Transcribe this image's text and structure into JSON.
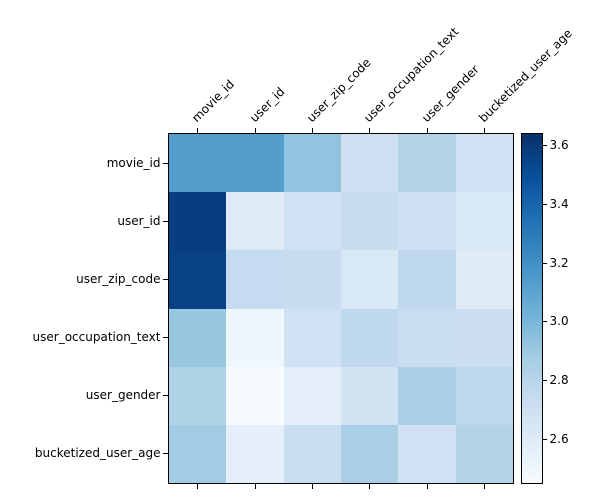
{
  "figure": {
    "background_color": "#ffffff",
    "axes_border_color": "#000000",
    "tick_color": "#000000",
    "text_color": "#000000"
  },
  "chart_data": {
    "type": "heatmap",
    "title": "",
    "xlabel": "",
    "ylabel": "",
    "columns": [
      "movie_id",
      "user_id",
      "user_zip_code",
      "user_occupation_text",
      "user_gender",
      "bucketized_user_age"
    ],
    "rows": [
      "movie_id",
      "user_id",
      "user_zip_code",
      "user_occupation_text",
      "user_gender",
      "bucketized_user_age"
    ],
    "values": [
      [
        3.13,
        3.13,
        2.93,
        2.7,
        2.82,
        2.69
      ],
      [
        3.58,
        2.6,
        2.69,
        2.74,
        2.7,
        2.63
      ],
      [
        3.56,
        2.75,
        2.74,
        2.63,
        2.77,
        2.59
      ],
      [
        2.91,
        2.5,
        2.69,
        2.77,
        2.73,
        2.71
      ],
      [
        2.83,
        2.45,
        2.57,
        2.68,
        2.84,
        2.78
      ],
      [
        2.88,
        2.56,
        2.73,
        2.85,
        2.69,
        2.82
      ]
    ],
    "colormap": "Blues",
    "vmin": 2.45,
    "vmax": 3.64,
    "x_tick_rotation_deg": 45,
    "x_ticks_position": "top",
    "grid": false,
    "colorbar": {
      "position": "right",
      "ticks": [
        3.6,
        3.4,
        3.2,
        3.0,
        2.8,
        2.6
      ],
      "tick_labels": [
        "3.6",
        "3.4",
        "3.2",
        "3.0",
        "2.8",
        "2.6"
      ]
    }
  }
}
